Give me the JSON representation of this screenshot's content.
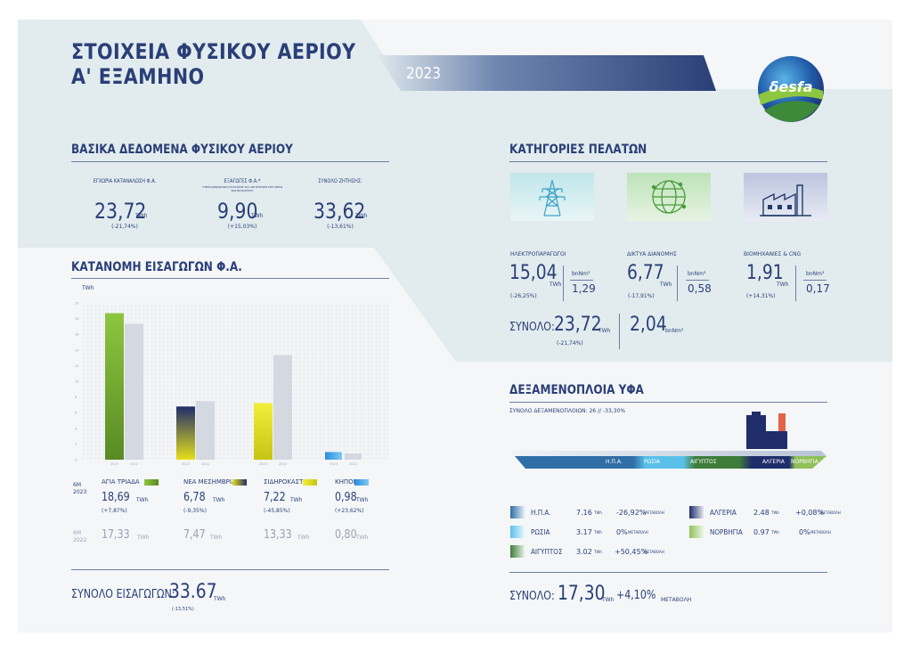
{
  "header": {
    "title_line1": "ΣΤΟΙΧΕΙΑ ΦΥΣΙΚΟΥ ΑΕΡΙΟΥ",
    "title_line2": "Α' ΕΞΑΜΗΝΟ",
    "year": "2023",
    "logo_text": "δesfa"
  },
  "basic": {
    "title": "ΒΑΣΙΚΑ ΔΕΔΟΜΕΝΑ ΦΥΣΙΚΟΥ ΑΕΡΙΟΥ",
    "items": [
      {
        "label": "ΕΓΧΩΡΙΑ ΚΑΤΑΝΑΛΩΣΗ Φ.Α.",
        "note": "",
        "value": "23,72",
        "unit": "TWh",
        "change": "(-21,74%)"
      },
      {
        "label": "ΕΞΑΓΩΓΕΣ Φ.Α.*",
        "note": "*ΠΕΡΙΛΑΜΒΑΝΟΝΤΑΙ ΕΞΑΓΩΓΕΣ ΚΑΙ ΑΝΤΙΣΤΡΟΦΗ ΡΟΗ ΜΕΣΩ ΣΙΔΗΡΟΚΑΣΤΡΟΥ",
        "value": "9,90",
        "unit": "TWh",
        "change": "(+15,03%)"
      },
      {
        "label": "ΣΥΝΟΛΟ ΖΗΤΗΣΗΣ:",
        "note": "",
        "value": "33,62",
        "unit": "TWh",
        "change": "(-13,61%)"
      }
    ]
  },
  "customers": {
    "title": "ΚΑΤΗΓΟΡΙΕΣ ΠΕΛΑΤΩΝ",
    "items": [
      {
        "label": "ΗΛΕΚΤΡΟΠΑΡΑΓΩΓΟΙ",
        "value": "15,04",
        "unit": "TWh",
        "change": "(-26,25%)",
        "bnm_label": "bnNm³",
        "bnm": "1,29",
        "icon": "power-tower-icon"
      },
      {
        "label": "ΔΙΚΤΥΑ ΔΙΑΝΟΜΗΣ",
        "value": "6,77",
        "unit": "TWh",
        "change": "(-17,91%)",
        "bnm_label": "bnNm³",
        "bnm": "0,58",
        "icon": "globe-network-icon"
      },
      {
        "label": "ΒΙΟΜΗΧΑΝΙΕΣ & CNG",
        "value": "1,91",
        "unit": "TWh",
        "change": "(+14,31%)",
        "bnm_label": "bnNm³",
        "bnm": "0,17",
        "icon": "factory-icon"
      }
    ],
    "total_label": "ΣΥΝΟΛΟ:",
    "total_value": "23,72",
    "total_unit": "TWh",
    "total_change": "(-21,74%)",
    "total_bnm": "2,04",
    "total_bnm_unit": "bnNm³"
  },
  "imports": {
    "title": "ΚΑΤΑΝΟΜΗ ΕΙΣΑΓΩΓΩΝ Φ.Α.",
    "y_unit": "TWh",
    "period_current": "6M 2023",
    "period_previous": "6M 2022",
    "points": [
      {
        "name": "ΑΓΙΑ ΤΡΙΑΔΑ",
        "v2023": "18,69",
        "unit": "TWh",
        "change": "(+7,87%)",
        "v2022": "17,33",
        "color": "#7aa829"
      },
      {
        "name": "ΝΕΑ ΜΕΣΗΜΒΡΙΑ",
        "v2023": "6,78",
        "unit": "TWh",
        "change": "(-9,35%)",
        "v2022": "7,47",
        "color": "#1f2d6b"
      },
      {
        "name": "ΣΙΔΗΡΟΚΑΣΤΡΟ",
        "v2023": "7,22",
        "unit": "TWh",
        "change": "(-45,85%)",
        "v2022": "13,33",
        "color": "#e6e01a"
      },
      {
        "name": "ΚΗΠΟΙ",
        "v2023": "0,98",
        "unit": "TWh",
        "change": "(+23,62%)",
        "v2022": "0,80",
        "color": "#2a8de0"
      }
    ],
    "total_label": "ΣΥΝΟΛΟ ΕΙΣΑΓΩΓΩΝ:",
    "total_value": "33.67",
    "total_unit": "TWh",
    "total_change": "(-13,51%)"
  },
  "chart_data": {
    "type": "bar",
    "categories": [
      "ΑΓΙΑ ΤΡΙΑΔΑ",
      "ΝΕΑ ΜΕΣΗΜΒΡΙΑ",
      "ΣΙΔΗΡΟΚΑΣΤΡΟ",
      "ΚΗΠΟΙ"
    ],
    "series": [
      {
        "name": "2023",
        "values": [
          18.69,
          6.78,
          7.22,
          0.98
        ]
      },
      {
        "name": "2022",
        "values": [
          17.33,
          7.47,
          13.33,
          0.8
        ]
      }
    ],
    "x_tick_labels": [
      "2023",
      "2022"
    ],
    "ylabel": "TWh",
    "ylim": [
      0,
      20
    ],
    "grid": true
  },
  "lng": {
    "title": "ΔΕΞΑΜΕΝΟΠΛΟΙΑ ΥΦΑ",
    "subtitle": "ΣΥΝΟΛΟ ΔΕΞΑΜΕΝΟΠΛΟΙΩΝ: 26  //  -33,30%",
    "ship_labels": [
      "Η.Π.Α.",
      "ΡΩΣΙΑ",
      "ΑΙΓΥΠΤΟΣ",
      "ΑΛΓΕΡΙΑ",
      "ΝΟΡΒΗΓΙΑ"
    ],
    "change_word": "ΜΕΤΑΒΟΛΗ",
    "items": [
      {
        "name": "Η.Π.Α.",
        "value": "7.16",
        "unit": "TWh",
        "change": "-26,92%",
        "color": "#2f6ea7"
      },
      {
        "name": "ΡΩΣΙΑ",
        "value": "3.17",
        "unit": "TWh",
        "change": "0%",
        "color": "#5ac0ea"
      },
      {
        "name": "ΑΙΓΥΠΤΟΣ",
        "value": "3.02",
        "unit": "TWh",
        "change": "+50,45%",
        "color": "#3e7c3a"
      },
      {
        "name": "ΑΛΓΕΡΙΑ",
        "value": "2.48",
        "unit": "TWh",
        "change": "+0,08%",
        "color": "#1f2d6b"
      },
      {
        "name": "ΝΟΡΒΗΓΙΑ",
        "value": "0.97",
        "unit": "TWh",
        "change": "0%",
        "color": "#8fc15a"
      }
    ],
    "total_label": "ΣΥΝΟΛΟ:",
    "total_value": "17,30",
    "total_unit": "TWh",
    "total_change": "+4,10%",
    "total_change_word": "ΜΕΤΑΒΟΛΗ"
  }
}
